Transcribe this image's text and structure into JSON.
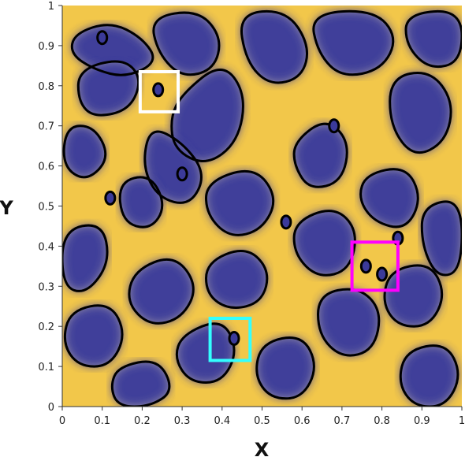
{
  "chart_data": {
    "type": "heatmap",
    "title": "",
    "xlabel": "X",
    "ylabel": "Y",
    "xlim": [
      0,
      1
    ],
    "ylim": [
      0,
      1
    ],
    "xticks": [
      "0",
      "0.1",
      "0.2",
      "0.3",
      "0.4",
      "0.5",
      "0.6",
      "0.7",
      "0.8",
      "0.9",
      "1"
    ],
    "yticks": [
      "0",
      "0.1",
      "0.2",
      "0.3",
      "0.4",
      "0.5",
      "0.6",
      "0.7",
      "0.8",
      "0.9",
      "1"
    ],
    "colormap": {
      "low": "#3b3a9a",
      "mid": "#9a96b0",
      "high": "#f2c74a"
    },
    "contour_color": "#000000",
    "grid": false,
    "legend": "none",
    "highlight_boxes": [
      {
        "color": "#ffffff",
        "x": [
          0.195,
          0.29
        ],
        "y": [
          0.735,
          0.835
        ]
      },
      {
        "color": "#ff00ff",
        "x": [
          0.725,
          0.84
        ],
        "y": [
          0.29,
          0.41
        ]
      },
      {
        "color": "#33ffff",
        "x": [
          0.37,
          0.47
        ],
        "y": [
          0.115,
          0.22
        ]
      }
    ]
  }
}
